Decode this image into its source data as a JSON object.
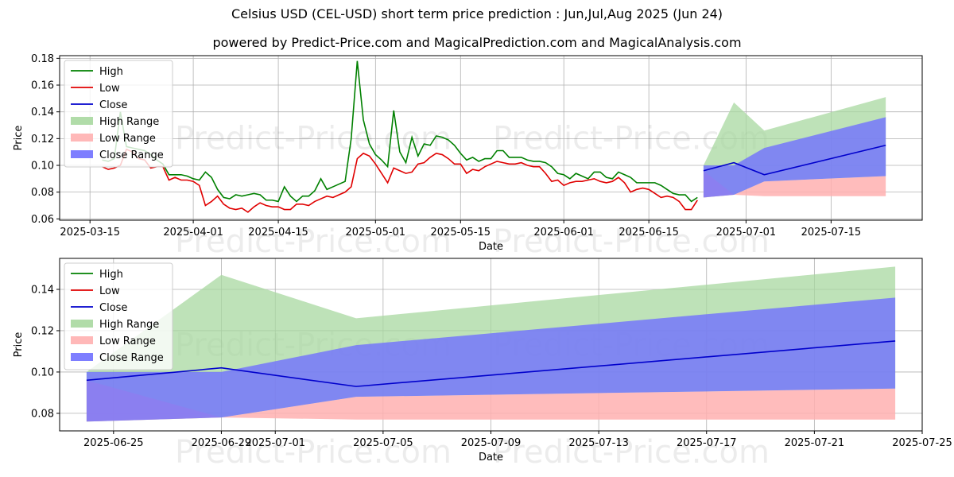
{
  "title": "Celsius USD (CEL-USD) short term price prediction : Jun,Jul,Aug 2025 (Jun 24)",
  "subtitle": "powered by Predict-Price.com and MagicalPrediction.com and MagicalAnalysis.com",
  "watermark": "Predict-Price.com",
  "colors": {
    "high": "#008000",
    "low": "#e00000",
    "close": "#0000cc",
    "high_range": "#a8d8a0",
    "low_range": "#ffb0b0",
    "close_range": "#7070ff",
    "grid": "#b0b0b0"
  },
  "chart_data": [
    {
      "type": "line",
      "xlabel": "Date",
      "ylabel": "Price",
      "xlim": [
        "2025-03-10",
        "2025-07-30"
      ],
      "ylim": [
        0.059,
        0.182
      ],
      "x_ticks": [
        "2025-03-15",
        "2025-04-01",
        "2025-04-15",
        "2025-05-01",
        "2025-05-15",
        "2025-06-01",
        "2025-06-15",
        "2025-07-01",
        "2025-07-15"
      ],
      "y_ticks": [
        0.06,
        0.08,
        0.1,
        0.12,
        0.14,
        0.16,
        0.18
      ],
      "grid": true,
      "legend_position": "upper-left",
      "legend": [
        "High",
        "Low",
        "Close",
        "High Range",
        "Low Range",
        "Close Range"
      ],
      "history": {
        "dates": [
          "2025-03-17",
          "2025-03-18",
          "2025-03-19",
          "2025-03-20",
          "2025-03-21",
          "2025-03-22",
          "2025-03-23",
          "2025-03-24",
          "2025-03-25",
          "2025-03-26",
          "2025-03-27",
          "2025-03-28",
          "2025-03-29",
          "2025-03-30",
          "2025-03-31",
          "2025-04-01",
          "2025-04-02",
          "2025-04-03",
          "2025-04-04",
          "2025-04-05",
          "2025-04-06",
          "2025-04-07",
          "2025-04-08",
          "2025-04-09",
          "2025-04-10",
          "2025-04-11",
          "2025-04-12",
          "2025-04-13",
          "2025-04-14",
          "2025-04-15",
          "2025-04-16",
          "2025-04-17",
          "2025-04-18",
          "2025-04-19",
          "2025-04-20",
          "2025-04-21",
          "2025-04-22",
          "2025-04-23",
          "2025-04-24",
          "2025-04-25",
          "2025-04-26",
          "2025-04-27",
          "2025-04-28",
          "2025-04-29",
          "2025-04-30",
          "2025-05-01",
          "2025-05-02",
          "2025-05-03",
          "2025-05-04",
          "2025-05-05",
          "2025-05-06",
          "2025-05-07",
          "2025-05-08",
          "2025-05-09",
          "2025-05-10",
          "2025-05-11",
          "2025-05-12",
          "2025-05-13",
          "2025-05-14",
          "2025-05-15",
          "2025-05-16",
          "2025-05-17",
          "2025-05-18",
          "2025-05-19",
          "2025-05-20",
          "2025-05-21",
          "2025-05-22",
          "2025-05-23",
          "2025-05-24",
          "2025-05-25",
          "2025-05-26",
          "2025-05-27",
          "2025-05-28",
          "2025-05-29",
          "2025-05-30",
          "2025-05-31",
          "2025-06-01",
          "2025-06-02",
          "2025-06-03",
          "2025-06-04",
          "2025-06-05",
          "2025-06-06",
          "2025-06-07",
          "2025-06-08",
          "2025-06-09",
          "2025-06-10",
          "2025-06-11",
          "2025-06-12",
          "2025-06-13",
          "2025-06-14",
          "2025-06-15",
          "2025-06-16",
          "2025-06-17",
          "2025-06-18",
          "2025-06-19",
          "2025-06-20",
          "2025-06-21",
          "2025-06-22",
          "2025-06-23"
        ],
        "high": [
          0.104,
          0.103,
          0.105,
          0.14,
          0.114,
          0.113,
          0.112,
          0.111,
          0.108,
          0.104,
          0.101,
          0.093,
          0.093,
          0.093,
          0.092,
          0.09,
          0.089,
          0.095,
          0.091,
          0.082,
          0.076,
          0.075,
          0.078,
          0.077,
          0.078,
          0.079,
          0.078,
          0.074,
          0.074,
          0.073,
          0.084,
          0.077,
          0.073,
          0.077,
          0.077,
          0.081,
          0.09,
          0.082,
          0.084,
          0.086,
          0.088,
          0.12,
          0.178,
          0.134,
          0.116,
          0.108,
          0.104,
          0.099,
          0.141,
          0.11,
          0.102,
          0.121,
          0.107,
          0.116,
          0.115,
          0.122,
          0.121,
          0.119,
          0.115,
          0.109,
          0.104,
          0.106,
          0.103,
          0.105,
          0.105,
          0.111,
          0.111,
          0.106,
          0.106,
          0.106,
          0.104,
          0.103,
          0.103,
          0.102,
          0.099,
          0.094,
          0.093,
          0.09,
          0.094,
          0.092,
          0.09,
          0.095,
          0.095,
          0.091,
          0.09,
          0.095,
          0.093,
          0.091,
          0.087,
          0.087,
          0.087,
          0.087,
          0.085,
          0.082,
          0.079,
          0.078,
          0.078,
          0.073,
          0.076
        ],
        "low": [
          0.099,
          0.097,
          0.098,
          0.1,
          0.112,
          0.11,
          0.105,
          0.104,
          0.098,
          0.099,
          0.099,
          0.089,
          0.091,
          0.089,
          0.089,
          0.088,
          0.085,
          0.07,
          0.073,
          0.077,
          0.071,
          0.068,
          0.067,
          0.068,
          0.065,
          0.069,
          0.072,
          0.07,
          0.069,
          0.069,
          0.067,
          0.067,
          0.071,
          0.071,
          0.07,
          0.073,
          0.075,
          0.077,
          0.076,
          0.078,
          0.08,
          0.084,
          0.105,
          0.109,
          0.107,
          0.101,
          0.094,
          0.087,
          0.098,
          0.096,
          0.094,
          0.095,
          0.101,
          0.102,
          0.106,
          0.109,
          0.108,
          0.105,
          0.101,
          0.101,
          0.094,
          0.097,
          0.096,
          0.099,
          0.101,
          0.103,
          0.102,
          0.101,
          0.101,
          0.102,
          0.1,
          0.099,
          0.099,
          0.094,
          0.088,
          0.089,
          0.085,
          0.087,
          0.088,
          0.088,
          0.089,
          0.09,
          0.088,
          0.087,
          0.088,
          0.091,
          0.087,
          0.08,
          0.082,
          0.083,
          0.082,
          0.079,
          0.076,
          0.077,
          0.076,
          0.073,
          0.067,
          0.067,
          0.074
        ]
      },
      "forecast": {
        "dates": [
          "2025-06-24",
          "2025-06-29",
          "2025-07-04",
          "2025-07-24"
        ],
        "close": [
          0.096,
          0.102,
          0.093,
          0.115
        ],
        "high_range": {
          "upper": [
            0.1,
            0.147,
            0.126,
            0.151
          ],
          "lower": [
            0.076,
            0.078,
            0.088,
            0.092
          ]
        },
        "low_range": {
          "upper": [
            0.096,
            0.078,
            0.088,
            0.092
          ],
          "lower": [
            0.076,
            0.078,
            0.077,
            0.077
          ]
        },
        "close_range": {
          "upper": [
            0.1,
            0.1,
            0.113,
            0.136
          ],
          "lower": [
            0.076,
            0.078,
            0.088,
            0.092
          ]
        }
      }
    },
    {
      "type": "line",
      "xlabel": "Date",
      "ylabel": "Price",
      "xlim": [
        "2025-06-23",
        "2025-07-25"
      ],
      "ylim": [
        0.0715,
        0.155
      ],
      "x_ticks": [
        "2025-06-25",
        "2025-06-29",
        "2025-07-01",
        "2025-07-05",
        "2025-07-09",
        "2025-07-13",
        "2025-07-17",
        "2025-07-21",
        "2025-07-25"
      ],
      "y_ticks": [
        0.08,
        0.1,
        0.12,
        0.14
      ],
      "grid": true,
      "legend_position": "upper-left",
      "legend": [
        "High",
        "Low",
        "Close",
        "High Range",
        "Low Range",
        "Close Range"
      ],
      "forecast_ref": "same as chart 1 forecast"
    }
  ]
}
